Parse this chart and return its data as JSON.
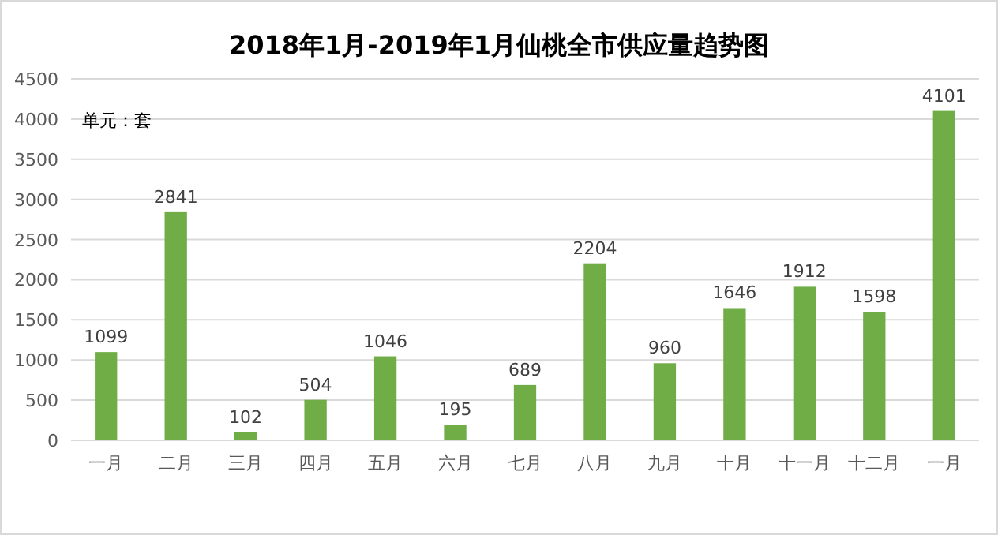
{
  "chart_data": {
    "type": "bar",
    "title": "2018年1月-2019年1月仙桃全市供应量趋势图",
    "annotations": [
      "单元：套"
    ],
    "categories": [
      "一月",
      "二月",
      "三月",
      "四月",
      "五月",
      "六月",
      "七月",
      "八月",
      "九月",
      "十月",
      "十一月",
      "十二月",
      "一月"
    ],
    "values": [
      1099,
      2841,
      102,
      504,
      1046,
      195,
      689,
      2204,
      960,
      1646,
      1912,
      1598,
      4101
    ],
    "color": "#70ad47",
    "data_labels": true,
    "grid": "y",
    "ylim": [
      0,
      4500
    ],
    "yticks": [
      0,
      500,
      1000,
      1500,
      2000,
      2500,
      3000,
      3500,
      4000,
      4500
    ]
  }
}
